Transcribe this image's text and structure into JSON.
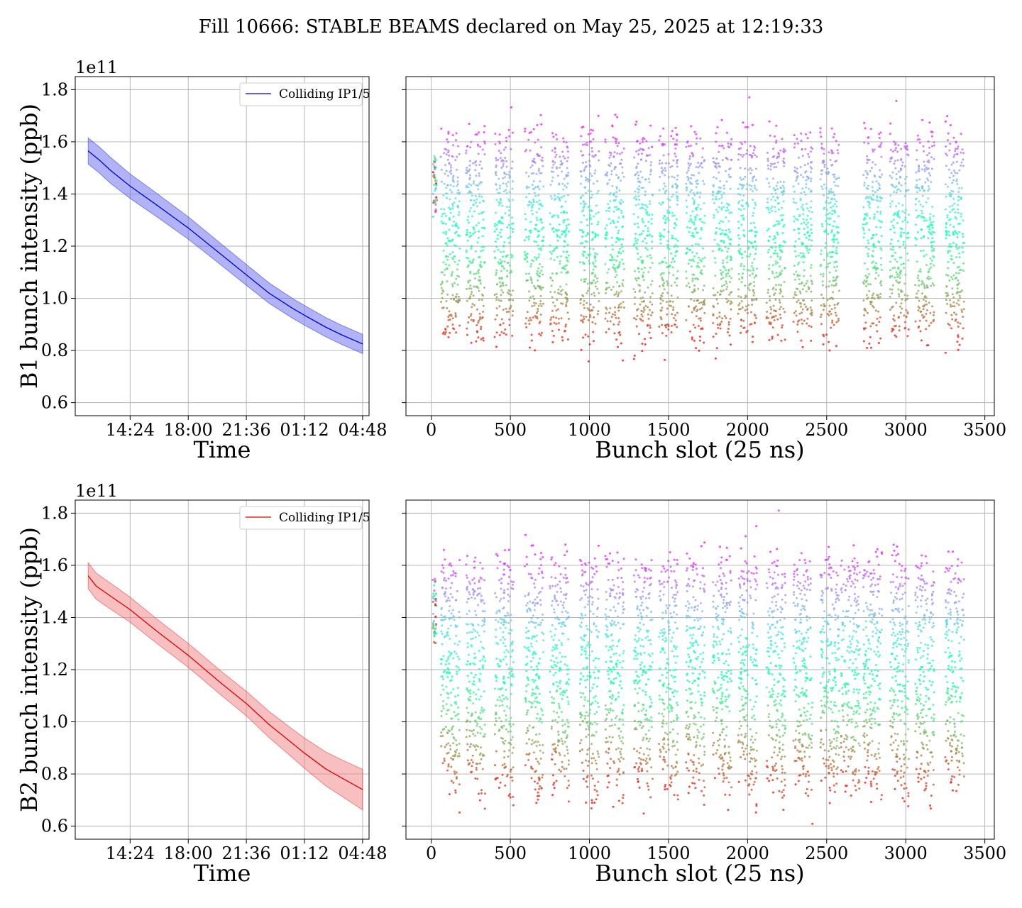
{
  "figure": {
    "title": "Fill 10666: STABLE BEAMS declared on May 25, 2025 at 12:19:33"
  },
  "chart_data": [
    {
      "id": "b1-time",
      "type": "line",
      "xlabel": "Time",
      "ylabel": "B1 bunch intensity (ppb)",
      "offset_text": "1e11",
      "xticks": [
        "14:24",
        "18:00",
        "21:36",
        "01:12",
        "04:48"
      ],
      "yticks": [
        "0.6",
        "0.8",
        "1.0",
        "1.2",
        "1.4",
        "1.6",
        "1.8"
      ],
      "ylim": [
        0.55,
        1.85
      ],
      "xlim_hours": [
        11.0,
        29.2
      ],
      "grid": true,
      "legend_position": "top-right",
      "series": [
        {
          "name": "Colliding IP1/5",
          "color": "#0000cc",
          "band_color": "#6666ee",
          "x_hours": [
            11.8,
            12.5,
            13.2,
            14.4,
            16.0,
            18.0,
            20.0,
            21.6,
            23.0,
            24.5,
            25.2,
            26.5,
            27.5,
            28.8
          ],
          "mean": [
            1.565,
            1.53,
            1.49,
            1.43,
            1.36,
            1.27,
            1.17,
            1.09,
            1.02,
            0.96,
            0.935,
            0.89,
            0.86,
            0.825
          ],
          "std": [
            0.05,
            0.05,
            0.05,
            0.047,
            0.045,
            0.043,
            0.041,
            0.04,
            0.039,
            0.038,
            0.038,
            0.037,
            0.037,
            0.037
          ]
        }
      ]
    },
    {
      "id": "b1-slot",
      "type": "scatter",
      "xlabel": "Bunch slot (25 ns)",
      "ylabel": "",
      "xticks": [
        "0",
        "500",
        "1000",
        "1500",
        "2000",
        "2500",
        "3000",
        "3500"
      ],
      "xlim": [
        -160,
        3560
      ],
      "ylim": [
        0.55,
        1.85
      ],
      "grid": true,
      "colormap": "rainbow",
      "trains_start": [
        60,
        220,
        400,
        590,
        750,
        940,
        1100,
        1280,
        1440,
        1610,
        1780,
        1940,
        2120,
        2290,
        2460,
        2730,
        2900,
        3060,
        3250
      ],
      "train_length": 120,
      "y_top": 1.58,
      "y_bottom": 0.86
    },
    {
      "id": "b2-time",
      "type": "line",
      "xlabel": "Time",
      "ylabel": "B2 bunch intensity (ppb)",
      "offset_text": "1e11",
      "xticks": [
        "14:24",
        "18:00",
        "21:36",
        "01:12",
        "04:48"
      ],
      "yticks": [
        "0.6",
        "0.8",
        "1.0",
        "1.2",
        "1.4",
        "1.6",
        "1.8"
      ],
      "ylim": [
        0.55,
        1.85
      ],
      "xlim_hours": [
        11.0,
        29.2
      ],
      "grid": true,
      "legend_position": "top-right",
      "series": [
        {
          "name": "Colliding IP1/5",
          "color": "#dd0000",
          "band_color": "#f08080",
          "x_hours": [
            11.8,
            12.3,
            13.0,
            14.4,
            16.0,
            18.0,
            20.0,
            21.6,
            23.0,
            24.5,
            25.2,
            26.5,
            27.5,
            28.8
          ],
          "mean": [
            1.56,
            1.52,
            1.49,
            1.43,
            1.35,
            1.255,
            1.15,
            1.07,
            0.99,
            0.915,
            0.88,
            0.82,
            0.785,
            0.74
          ],
          "std": [
            0.05,
            0.05,
            0.05,
            0.048,
            0.047,
            0.046,
            0.046,
            0.047,
            0.05,
            0.055,
            0.058,
            0.065,
            0.07,
            0.078
          ]
        }
      ]
    },
    {
      "id": "b2-slot",
      "type": "scatter",
      "xlabel": "Bunch slot (25 ns)",
      "ylabel": "",
      "xticks": [
        "0",
        "500",
        "1000",
        "1500",
        "2000",
        "2500",
        "3000",
        "3500"
      ],
      "xlim": [
        -160,
        3560
      ],
      "ylim": [
        0.55,
        1.85
      ],
      "grid": true,
      "colormap": "rainbow",
      "trains_start": [
        60,
        220,
        400,
        590,
        750,
        940,
        1100,
        1280,
        1440,
        1610,
        1780,
        1940,
        2120,
        2290,
        2460,
        2590,
        2730,
        2900,
        3060,
        3250
      ],
      "train_length": 120,
      "y_top": 1.58,
      "y_bottom": 0.82
    }
  ]
}
